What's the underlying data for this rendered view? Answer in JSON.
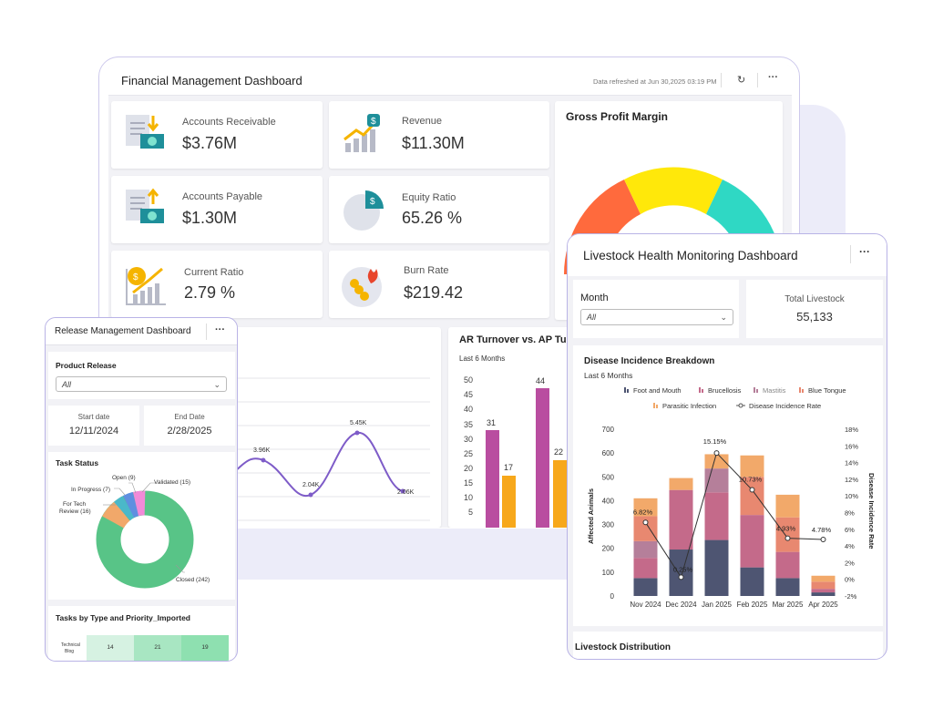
{
  "financial": {
    "title": "Financial Management Dashboard",
    "refreshed": "Data refreshed at Jun 30,2025 03:19 PM",
    "refresh_icon": "refresh-icon",
    "more_icon": "more-icon",
    "kpis": [
      {
        "label": "Accounts Receivable",
        "value": "$3.76M",
        "icon": "receivable-icon"
      },
      {
        "label": "Revenue",
        "value": "$11.30M",
        "icon": "revenue-icon"
      },
      {
        "label": "Accounts Payable",
        "value": "$1.30M",
        "icon": "payable-icon"
      },
      {
        "label": "Equity Ratio",
        "value": "65.26 %",
        "icon": "equity-pie-icon"
      },
      {
        "label": "Current Ratio",
        "value": "2.79 %",
        "icon": "current-ratio-icon"
      },
      {
        "label": "Burn Rate",
        "value": "$219.42",
        "icon": "burn-rate-icon"
      }
    ],
    "gauge": {
      "title": "Gross Profit Margin",
      "ticks": [
        "20",
        "40",
        "60",
        "80"
      ],
      "colors": [
        "#ff6a3d",
        "#ffe80a",
        "#2fd8c4"
      ]
    },
    "line_chart": {
      "labels": [
        "3.96K",
        "2.04K",
        "5.45K",
        "2.06K"
      ],
      "color": "#7e5cc8"
    },
    "ar_ap": {
      "title": "AR Turnover vs. AP Turnover",
      "subtitle": "Last 6 Months",
      "y_ticks": [
        "50",
        "45",
        "40",
        "35",
        "30",
        "25",
        "20",
        "15",
        "10",
        "5"
      ],
      "bar_labels": [
        "31",
        "17",
        "44",
        "22"
      ],
      "colors": {
        "ar": "#b94da0",
        "ap": "#f7a81b"
      }
    }
  },
  "livestock": {
    "title": "Livestock Health Monitoring Dashboard",
    "more_icon": "more-icon",
    "month_label": "Month",
    "month_value": "All",
    "total_label": "Total Livestock",
    "total_value": "55,133",
    "chart_title": "Disease Incidence Breakdown",
    "chart_subtitle": "Last 6 Months",
    "footer_title": "Livestock Distribution"
  },
  "chart_data": {
    "type": "bar",
    "stacked": true,
    "title": "Disease Incidence Breakdown",
    "subtitle": "Last 6 Months",
    "categories": [
      "Nov 2024",
      "Dec 2024",
      "Jan 2025",
      "Feb 2025",
      "Mar 2025",
      "Apr 2025"
    ],
    "ylabel": "Affected Animals",
    "y2label": "Disease Incidence Rate",
    "ylim": [
      0,
      700
    ],
    "y_ticks": [
      "0",
      "100",
      "200",
      "300",
      "400",
      "500",
      "600",
      "700"
    ],
    "y2lim": [
      -2,
      18
    ],
    "y2_ticks": [
      "-2%",
      "0%",
      "2%",
      "4%",
      "6%",
      "8%",
      "10%",
      "12%",
      "14%",
      "16%",
      "18%"
    ],
    "legend": "top",
    "series": [
      {
        "name": "Foot and Mouth",
        "color": "#4e5572",
        "values": [
          75,
          195,
          235,
          120,
          75,
          15
        ]
      },
      {
        "name": "Brucellosis",
        "color": "#c46a8a",
        "values": [
          85,
          250,
          200,
          220,
          110,
          15
        ]
      },
      {
        "name": "Mastitis",
        "color": "#b57f9a",
        "values": [
          70,
          0,
          100,
          0,
          0,
          0
        ]
      },
      {
        "name": "Blue Tongue",
        "color": "#e88870",
        "values": [
          105,
          0,
          0,
          160,
          145,
          30
        ]
      },
      {
        "name": "Parasitic Infection",
        "color": "#f2a96a",
        "values": [
          75,
          50,
          60,
          90,
          95,
          25
        ]
      }
    ],
    "line": {
      "name": "Disease Incidence Rate",
      "values": [
        6.82,
        0.25,
        15.15,
        10.73,
        4.93,
        4.78
      ],
      "labels": [
        "6.82%",
        "0.25%",
        "15.15%",
        "10.73%",
        "4.93%",
        "4.78%"
      ]
    }
  },
  "release": {
    "title": "Release Management Dashboard",
    "more_icon": "more-icon",
    "product_label": "Product Release",
    "product_value": "All",
    "start_label": "Start date",
    "start_value": "12/11/2024",
    "end_label": "End Date",
    "end_value": "2/28/2025",
    "task_status_title": "Task Status",
    "donut": {
      "labels": [
        "Open (9)",
        "Validated (15)",
        "In Progress (7)",
        "For Tech Review (16)",
        "Closed (242)"
      ],
      "label_lines": [
        "For Tech",
        "Review (16)"
      ],
      "values": [
        9,
        15,
        7,
        16,
        242
      ],
      "colors": [
        "#5f8fe0",
        "#f28ad8",
        "#4ab8c9",
        "#f1a86a",
        "#58c487"
      ]
    },
    "tasks_title": "Tasks by Type and Priority_Imported",
    "row": {
      "label_lines": [
        "Technical",
        "Blog"
      ],
      "cells": [
        "14",
        "21",
        "19"
      ]
    }
  }
}
